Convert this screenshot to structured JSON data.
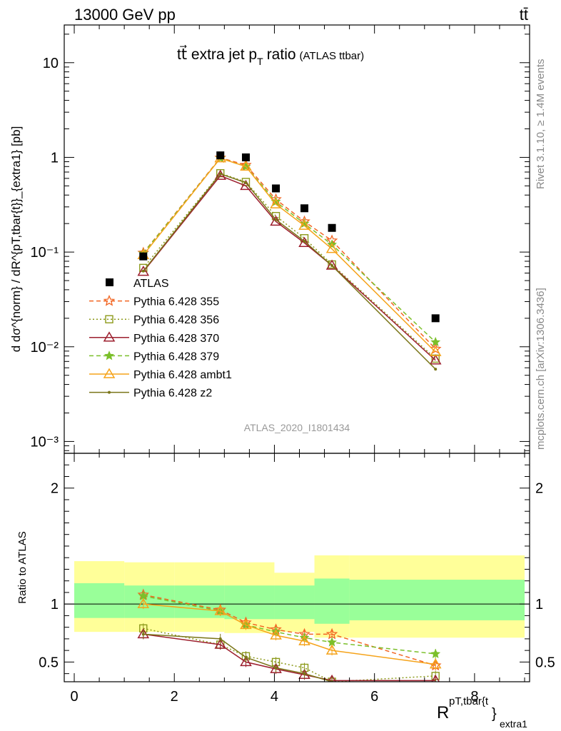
{
  "header": {
    "left": "13000 GeV pp",
    "right": "tt̄"
  },
  "side_labels": {
    "rivet": "Rivet 3.1.10, ≥ 1.4M events",
    "mcplots": "mcplots.cern.ch [arXiv:1306.3436]"
  },
  "chart_data": {
    "type": "line",
    "title_main": "tt⃗ extra jet p",
    "title_sub": "T",
    "title_tail": "ratio",
    "title_small": "(ATLAS ttbar)",
    "analysis_id": "ATLAS_2020_I1801434",
    "ylabel_top": "d dσ^{norm} / dR^{pT,tbar{t}}_{extra1} [pb]",
    "ylabel_ratio": "Ratio to ATLAS",
    "xlabel_base": "R",
    "xlabel_sup": "pT,tbar{t",
    "xlabel_brace": "}",
    "xlabel_sub": "extra1",
    "x_range": [
      -0.2,
      9.1
    ],
    "y_range_top": [
      0.00075,
      25
    ],
    "y_scale_top": "log",
    "y_range_ratio": [
      0.33,
      2.3
    ],
    "x_ticks": [
      "0",
      "2",
      "4",
      "6",
      "8"
    ],
    "y_ticks_top": [
      "10⁻³",
      "10⁻²",
      "10⁻¹",
      "1",
      "10"
    ],
    "y_ticks_ratio": [
      "0.5",
      "1",
      "2"
    ],
    "legend_position": "middle-left",
    "x": [
      1.38,
      2.92,
      3.43,
      4.03,
      4.6,
      5.15,
      7.22
    ],
    "band_edges": [
      0.0,
      1.0,
      2.0,
      3.0,
      4.0,
      4.8,
      5.5,
      9.0
    ],
    "ratio_band_green": [
      [
        0.88,
        1.18
      ],
      [
        0.88,
        1.16
      ],
      [
        0.88,
        1.16
      ],
      [
        0.87,
        1.16
      ],
      [
        0.87,
        1.16
      ],
      [
        0.83,
        1.22
      ],
      [
        0.86,
        1.21
      ]
    ],
    "ratio_band_yellow": [
      [
        0.76,
        1.37
      ],
      [
        0.76,
        1.36
      ],
      [
        0.76,
        1.36
      ],
      [
        0.75,
        1.36
      ],
      [
        0.76,
        1.27
      ],
      [
        0.71,
        1.42
      ],
      [
        0.71,
        1.42
      ]
    ],
    "data": {
      "name": "ATLAS",
      "values": [
        0.09,
        1.05,
        1.0,
        0.47,
        0.29,
        0.18,
        0.02
      ]
    },
    "series": [
      {
        "name": "Pythia 6.428 355",
        "color": "#f26522",
        "dash": "6,4",
        "marker": "star-open",
        "values": [
          0.098,
          0.99,
          0.83,
          0.36,
          0.21,
          0.132,
          0.0095
        ],
        "ratio": [
          1.08,
          0.95,
          0.84,
          0.78,
          0.74,
          0.74,
          0.47
        ]
      },
      {
        "name": "Pythia 6.428 356",
        "color": "#8c9a1a",
        "dash": "2,3",
        "marker": "square-open",
        "values": [
          0.068,
          0.68,
          0.55,
          0.24,
          0.14,
          0.074,
          0.0075
        ],
        "ratio": [
          0.79,
          0.65,
          0.55,
          0.5,
          0.45,
          0.33,
          0.38
        ]
      },
      {
        "name": "Pythia 6.428 370",
        "color": "#9c1f2e",
        "dash": "",
        "marker": "triangle-open",
        "values": [
          0.062,
          0.64,
          0.5,
          0.21,
          0.125,
          0.072,
          0.0072
        ],
        "ratio": [
          0.74,
          0.65,
          0.5,
          0.44,
          0.39,
          0.34,
          0.34
        ]
      },
      {
        "name": "Pythia 6.428 379",
        "color": "#7bbf2a",
        "dash": "6,4",
        "marker": "star",
        "values": [
          0.097,
          0.98,
          0.8,
          0.34,
          0.2,
          0.12,
          0.0112
        ],
        "ratio": [
          1.07,
          0.94,
          0.82,
          0.76,
          0.71,
          0.67,
          0.57
        ]
      },
      {
        "name": "Pythia 6.428 ambt1",
        "color": "#f5a31a",
        "dash": "",
        "marker": "triangle-open",
        "values": [
          0.093,
          0.98,
          0.8,
          0.32,
          0.19,
          0.108,
          0.0088
        ],
        "ratio": [
          1.0,
          0.94,
          0.82,
          0.73,
          0.68,
          0.6,
          0.48
        ]
      },
      {
        "name": "Pythia 6.428 z2",
        "color": "#7a7518",
        "dash": "",
        "marker": "dot",
        "values": [
          0.063,
          0.67,
          0.54,
          0.22,
          0.13,
          0.072,
          0.0058
        ],
        "ratio": [
          0.74,
          0.7,
          0.54,
          0.45,
          0.4,
          0.33,
          0.3
        ]
      }
    ]
  }
}
